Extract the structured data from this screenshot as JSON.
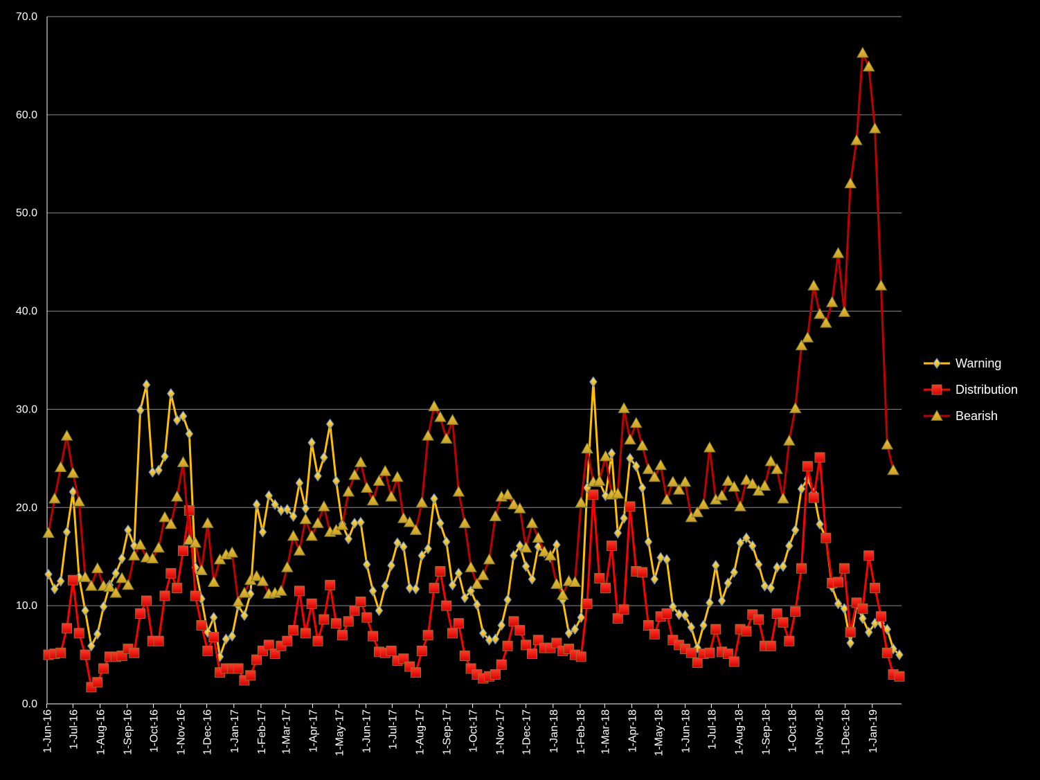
{
  "chart_data": {
    "type": "line",
    "title": "",
    "xlabel": "",
    "ylabel": "",
    "ylim": [
      0,
      70
    ],
    "yticks": [
      "0.0",
      "10.0",
      "20.0",
      "30.0",
      "40.0",
      "50.0",
      "60.0",
      "70.0"
    ],
    "grid": true,
    "legend_position": "right",
    "x_tick_labels": [
      "1-Jun-16",
      "1-Jul-16",
      "1-Aug-16",
      "1-Sep-16",
      "1-Oct-16",
      "1-Nov-16",
      "1-Dec-16",
      "1-Jan-17",
      "1-Feb-17",
      "1-Mar-17",
      "1-Apr-17",
      "1-May-17",
      "1-Jun-17",
      "1-Jul-17",
      "1-Aug-17",
      "1-Sep-17",
      "1-Oct-17",
      "1-Nov-17",
      "1-Dec-17",
      "1-Jan-18",
      "1-Feb-18",
      "1-Mar-18",
      "1-Apr-18",
      "1-May-18",
      "1-Jun-18",
      "1-Jul-18",
      "1-Aug-18",
      "1-Sep-18",
      "1-Oct-18",
      "1-Nov-18",
      "1-Dec-18",
      "1-Jan-19"
    ],
    "x_start": "2016-06-03",
    "x_step_days": 7,
    "series": [
      {
        "name": "Warning",
        "color": "#FFC000",
        "marker": "diamond",
        "values": [
          13.2,
          11.7,
          12.5,
          17.5,
          21.6,
          12.9,
          9.5,
          5.9,
          7.1,
          9.9,
          12.1,
          13.3,
          14.8,
          17.7,
          16.1,
          29.9,
          32.5,
          23.6,
          23.8,
          25.2,
          31.6,
          28.9,
          29.3,
          27.5,
          13.9,
          10.7,
          7.3,
          8.8,
          4.8,
          6.6,
          6.9,
          10.0,
          9.0,
          11.2,
          20.3,
          17.5,
          21.2,
          20.3,
          19.7,
          19.8,
          19.1,
          22.5,
          19.9,
          26.6,
          23.2,
          25.1,
          28.5,
          22.7,
          18.3,
          16.8,
          18.4,
          18.5,
          14.2,
          11.5,
          9.5,
          12.0,
          14.1,
          16.4,
          16.0,
          11.8,
          11.7,
          15.1,
          15.8,
          20.9,
          18.4,
          16.5,
          12.1,
          13.3,
          10.8,
          11.5,
          10.1,
          7.2,
          6.5,
          6.6,
          8.0,
          10.6,
          15.1,
          16.1,
          14.0,
          12.7,
          16.0,
          15.4,
          14.9,
          16.2,
          10.6,
          7.2,
          7.6,
          8.8,
          22.0,
          32.8,
          22.6,
          21.2,
          25.5,
          17.4,
          18.9,
          25.0,
          24.2,
          22.0,
          16.5,
          12.7,
          14.9,
          14.7,
          9.9,
          9.1,
          9.0,
          7.8,
          5.7,
          8.0,
          10.3,
          14.1,
          10.5,
          12.3,
          13.4,
          16.4,
          16.9,
          16.1,
          14.2,
          12.0,
          11.8,
          13.9,
          14.0,
          16.1,
          17.7,
          21.9,
          22.9,
          21.5,
          18.3,
          16.9,
          11.9,
          10.2,
          9.7,
          6.2,
          10.1,
          8.7,
          7.3,
          8.2,
          8.2,
          7.6,
          5.6,
          5.0
        ]
      },
      {
        "name": "Distribution",
        "color": "#FF0000",
        "marker": "square",
        "values": [
          5.0,
          5.1,
          5.2,
          7.7,
          12.6,
          7.2,
          5.0,
          1.7,
          2.2,
          3.6,
          4.8,
          4.8,
          4.9,
          5.6,
          5.2,
          9.2,
          10.5,
          6.4,
          6.4,
          11.0,
          13.3,
          11.8,
          15.6,
          19.7,
          11.0,
          8.0,
          5.4,
          6.8,
          3.2,
          3.6,
          3.6,
          3.6,
          2.4,
          2.9,
          4.5,
          5.4,
          6.0,
          5.1,
          5.9,
          6.4,
          7.5,
          11.5,
          7.2,
          10.2,
          6.4,
          8.6,
          12.1,
          8.2,
          7.0,
          8.4,
          9.5,
          10.4,
          8.8,
          6.9,
          5.3,
          5.2,
          5.4,
          4.4,
          4.6,
          3.8,
          3.2,
          5.4,
          7.0,
          11.8,
          13.5,
          10.0,
          7.2,
          8.2,
          4.9,
          3.6,
          3.0,
          2.6,
          2.8,
          3.0,
          4.0,
          5.9,
          8.4,
          7.5,
          6.0,
          5.1,
          6.5,
          5.7,
          5.7,
          6.2,
          5.4,
          5.6,
          5.0,
          4.8,
          10.2,
          21.3,
          12.8,
          11.8,
          16.1,
          8.7,
          9.6,
          20.1,
          13.5,
          13.4,
          8.0,
          7.1,
          8.9,
          9.2,
          6.5,
          6.0,
          5.6,
          5.2,
          4.2,
          5.1,
          5.2,
          7.6,
          5.3,
          5.1,
          4.3,
          7.6,
          7.4,
          9.1,
          8.6,
          5.9,
          5.9,
          9.2,
          8.3,
          6.4,
          9.4,
          13.8,
          24.2,
          21.0,
          25.1,
          16.9,
          12.3,
          12.4,
          13.8,
          7.3,
          10.3,
          9.7,
          15.1,
          11.8,
          8.9,
          5.2,
          3.0,
          2.8
        ]
      },
      {
        "name": "Bearish",
        "color": "#C00000",
        "marker": "triangle",
        "values": [
          17.4,
          20.9,
          24.1,
          27.3,
          23.5,
          20.6,
          12.9,
          12.0,
          13.8,
          12.0,
          11.9,
          11.3,
          12.8,
          12.1,
          15.1,
          16.2,
          14.9,
          14.8,
          15.9,
          19.0,
          18.3,
          21.1,
          24.6,
          16.7,
          16.4,
          13.6,
          18.4,
          12.4,
          14.7,
          15.2,
          15.4,
          10.4,
          11.3,
          12.6,
          13.0,
          12.5,
          11.2,
          11.3,
          11.5,
          13.9,
          17.1,
          15.6,
          18.8,
          17.1,
          18.4,
          20.1,
          17.5,
          17.7,
          18.2,
          21.6,
          23.3,
          24.6,
          22.0,
          20.7,
          22.7,
          23.7,
          21.1,
          23.1,
          18.9,
          18.5,
          17.7,
          20.5,
          27.3,
          30.3,
          29.2,
          27.0,
          28.9,
          21.6,
          18.4,
          13.9,
          12.2,
          13.1,
          14.7,
          19.1,
          21.1,
          21.3,
          20.3,
          19.9,
          15.9,
          18.4,
          16.9,
          15.5,
          15.1,
          12.2,
          11.1,
          12.5,
          12.4,
          20.5,
          26.0,
          22.6,
          22.7,
          25.2,
          21.3,
          21.4,
          30.1,
          26.9,
          28.6,
          26.3,
          23.9,
          23.1,
          24.3,
          20.8,
          22.6,
          21.8,
          22.6,
          19.0,
          19.5,
          20.3,
          26.1,
          20.8,
          21.2,
          22.7,
          22.1,
          20.1,
          22.8,
          22.4,
          21.7,
          22.2,
          24.7,
          23.9,
          20.9,
          26.8,
          30.1,
          36.5,
          37.3,
          42.6,
          39.7,
          38.8,
          40.9,
          45.9,
          39.9,
          53.0,
          57.4,
          66.3,
          64.9,
          58.6,
          42.6,
          26.4,
          23.8
        ]
      }
    ]
  }
}
